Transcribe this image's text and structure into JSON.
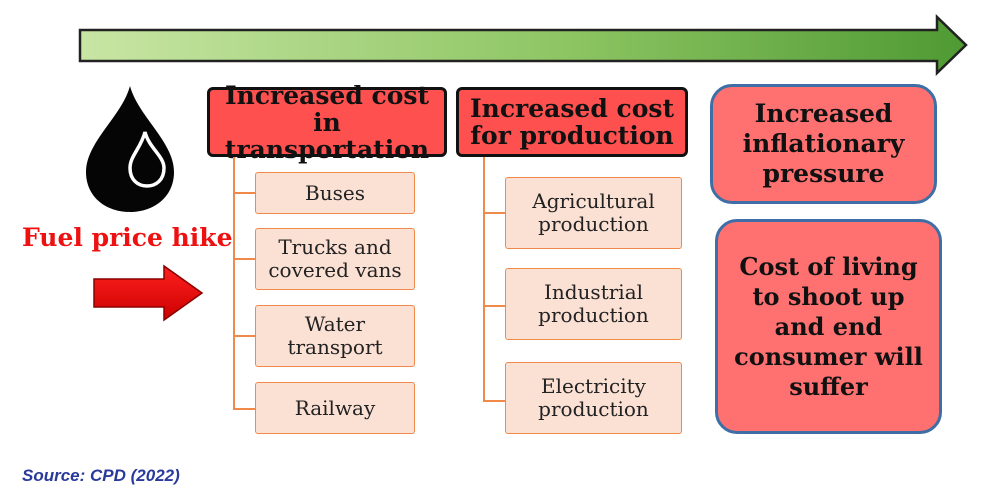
{
  "fuel_label": "Fuel price hike",
  "columns": [
    {
      "header": "Increased cost in transportation",
      "items": [
        "Buses",
        "Trucks and covered vans",
        "Water transport",
        "Railway"
      ]
    },
    {
      "header": "Increased cost for production",
      "items": [
        "Agricultural production",
        "Industrial production",
        "Electricity production"
      ]
    }
  ],
  "outcomes": [
    "Increased inflationary pressure",
    "Cost of living to shoot up and end consumer will suffer"
  ],
  "source": "Source: CPD (2022)",
  "icons": {
    "progress_arrow": "green-gradient-arrow-icon",
    "fuel_drop": "oil-drop-icon",
    "input_arrow": "red-arrow-icon"
  },
  "colors": {
    "header_fill": "#ff5050",
    "sub_fill": "#fbe0d4",
    "sub_border": "#f08a4b",
    "outcome_fill": "#ff7070",
    "outcome_border": "#3f6ea7",
    "fuel_label": "#ee1111",
    "source_text": "#2a3a9a"
  }
}
